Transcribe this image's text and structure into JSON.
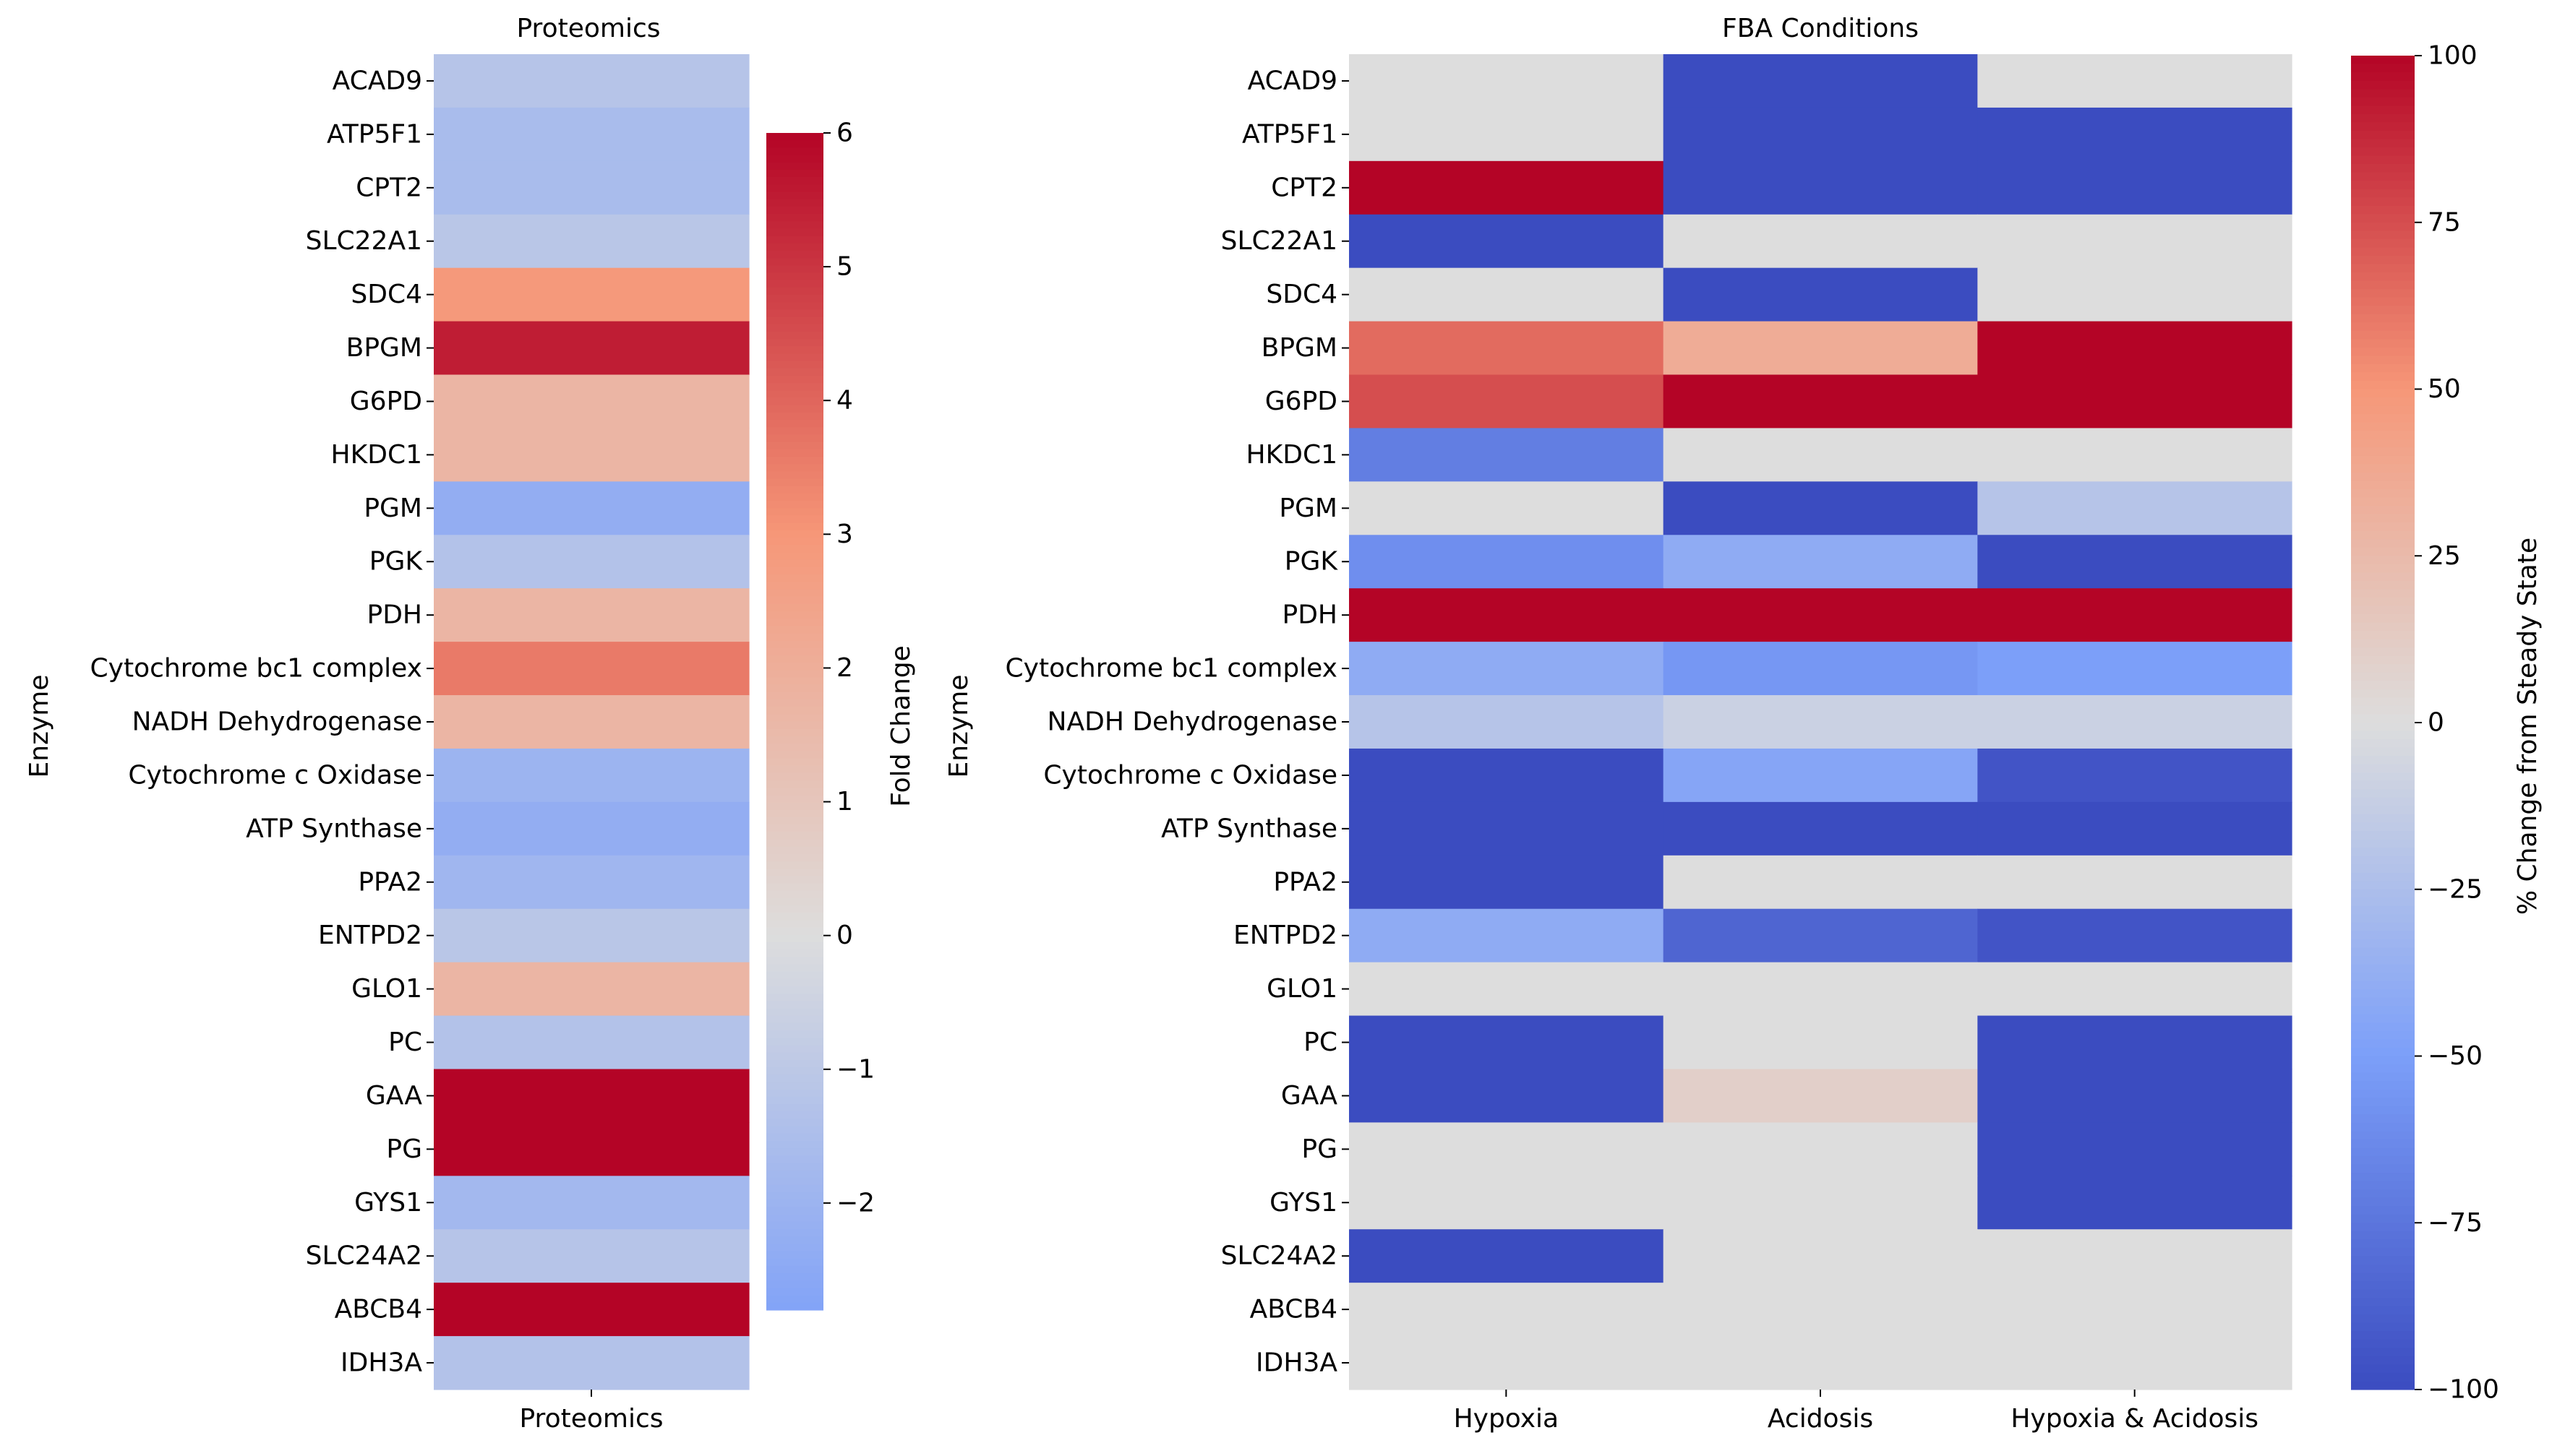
{
  "chart_data": [
    {
      "type": "heatmap",
      "title": "Proteomics",
      "xlabel": "",
      "ylabel": "Enzyme",
      "columns": [
        "Proteomics"
      ],
      "rows": [
        "ACAD9",
        "ATP5F1",
        "CPT2",
        "SLC22A1",
        "SDC4",
        "BPGM",
        "G6PD",
        "HKDC1",
        "PGM",
        "PGK",
        "PDH",
        "Cytochrome bc1 complex",
        "NADH Dehydrogenase",
        "Cytochrome c Oxidase",
        "ATP Synthase",
        "PPA2",
        "ENTPD2",
        "GLO1",
        "PC",
        "GAA",
        "PG",
        "GYS1",
        "SLC24A2",
        "ABCB4",
        "IDH3A"
      ],
      "values": [
        [
          -1.2
        ],
        [
          -1.6
        ],
        [
          -1.6
        ],
        [
          -1.1
        ],
        [
          2.9
        ],
        [
          5.5
        ],
        [
          1.7
        ],
        [
          1.7
        ],
        [
          -2.3
        ],
        [
          -1.3
        ],
        [
          1.7
        ],
        [
          3.6
        ],
        [
          1.7
        ],
        [
          -2.0
        ],
        [
          -2.3
        ],
        [
          -1.9
        ],
        [
          -1.1
        ],
        [
          1.7
        ],
        [
          -1.3
        ],
        [
          6.5
        ],
        [
          6.5
        ],
        [
          -1.8
        ],
        [
          -1.2
        ],
        [
          6.5
        ],
        [
          -1.3
        ]
      ],
      "colorbar": {
        "label": "Fold Change",
        "vmin": -2.8,
        "vmax": 6,
        "ticks": [
          "6",
          "5",
          "4",
          "3",
          "2",
          "1",
          "0",
          "−1",
          "−2"
        ],
        "tick_values": [
          6,
          5,
          4,
          3,
          2,
          1,
          0,
          -1,
          -2
        ]
      },
      "color_scale": {
        "cmap": "coolwarm",
        "center": 0,
        "abs_max": 6
      }
    },
    {
      "type": "heatmap",
      "title": "FBA Conditions",
      "xlabel": "",
      "ylabel": "Enzyme",
      "columns": [
        "Hypoxia",
        "Acidosis",
        "Hypoxia & Acidosis"
      ],
      "rows": [
        "ACAD9",
        "ATP5F1",
        "CPT2",
        "SLC22A1",
        "SDC4",
        "BPGM",
        "G6PD",
        "HKDC1",
        "PGM",
        "PGK",
        "PDH",
        "Cytochrome bc1 complex",
        "NADH Dehydrogenase",
        "Cytochrome c Oxidase",
        "ATP Synthase",
        "PPA2",
        "ENTPD2",
        "GLO1",
        "PC",
        "GAA",
        "PG",
        "GYS1",
        "SLC24A2",
        "ABCB4",
        "IDH3A"
      ],
      "values": [
        [
          0,
          -100,
          0
        ],
        [
          0,
          -100,
          -100
        ],
        [
          100,
          -100,
          -100
        ],
        [
          -100,
          0,
          0
        ],
        [
          0,
          -100,
          0
        ],
        [
          65,
          35,
          100
        ],
        [
          75,
          100,
          100
        ],
        [
          -70,
          0,
          0
        ],
        [
          0,
          -100,
          -20
        ],
        [
          -60,
          -40,
          -100
        ],
        [
          100,
          100,
          100
        ],
        [
          -40,
          -55,
          -50
        ],
        [
          -20,
          -10,
          -10
        ],
        [
          -100,
          -45,
          -95
        ],
        [
          -100,
          -100,
          -100
        ],
        [
          -100,
          0,
          0
        ],
        [
          -40,
          -85,
          -95
        ],
        [
          0,
          0,
          0
        ],
        [
          -100,
          0,
          -100
        ],
        [
          -100,
          10,
          -100
        ],
        [
          0,
          0,
          -100
        ],
        [
          0,
          0,
          -100
        ],
        [
          -100,
          0,
          0
        ],
        [
          0,
          0,
          0
        ],
        [
          0,
          0,
          0
        ]
      ],
      "colorbar": {
        "label": "% Change from Steady State",
        "vmin": -100,
        "vmax": 100,
        "ticks": [
          "100",
          "75",
          "50",
          "25",
          "0",
          "−25",
          "−50",
          "−75",
          "−100"
        ],
        "tick_values": [
          100,
          75,
          50,
          25,
          0,
          -25,
          -50,
          -75,
          -100
        ]
      },
      "color_scale": {
        "cmap": "coolwarm",
        "center": 0,
        "abs_max": 100
      }
    }
  ]
}
